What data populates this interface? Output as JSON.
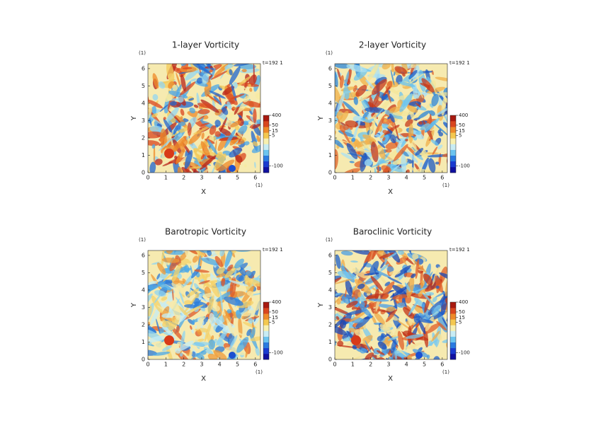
{
  "chart_data": [
    {
      "type": "heatmap",
      "title": "1-layer Vorticity",
      "x_label": "X",
      "y_label": "Y",
      "x_unit": "(1)",
      "y_unit": "(1)",
      "time_label": "t=192 1",
      "xlim": [
        0,
        6.283
      ],
      "ylim": [
        0,
        6.283
      ],
      "xticks": [
        0,
        1,
        2,
        3,
        4,
        5,
        6
      ],
      "yticks": [
        0,
        1,
        2,
        3,
        4,
        5,
        6
      ],
      "colorbar": {
        "scale": "symlog",
        "clim": [
          -400,
          400
        ],
        "ticks": [
          400,
          50,
          15,
          5,
          -100
        ]
      }
    },
    {
      "type": "heatmap",
      "title": "2-layer Vorticity",
      "x_label": "X",
      "y_label": "Y",
      "x_unit": "(1)",
      "y_unit": "(1)",
      "time_label": "t=192 1",
      "xlim": [
        0,
        6.283
      ],
      "ylim": [
        0,
        6.283
      ],
      "xticks": [
        0,
        1,
        2,
        3,
        4,
        5,
        6
      ],
      "yticks": [
        0,
        1,
        2,
        3,
        4,
        5,
        6
      ],
      "colorbar": {
        "scale": "symlog",
        "clim": [
          -400,
          400
        ],
        "ticks": [
          400,
          50,
          15,
          5,
          -100
        ]
      }
    },
    {
      "type": "heatmap",
      "title": "Barotropic Vorticity",
      "x_label": "X",
      "y_label": "Y",
      "x_unit": "(1)",
      "y_unit": "(1)",
      "time_label": "t=192 1",
      "xlim": [
        0,
        6.283
      ],
      "ylim": [
        0,
        6.283
      ],
      "xticks": [
        0,
        1,
        2,
        3,
        4,
        5,
        6
      ],
      "yticks": [
        0,
        1,
        2,
        3,
        4,
        5,
        6
      ],
      "colorbar": {
        "scale": "symlog",
        "clim": [
          -400,
          400
        ],
        "ticks": [
          400,
          50,
          15,
          5,
          -100
        ]
      }
    },
    {
      "type": "heatmap",
      "title": "Baroclinic Vorticity",
      "x_label": "X",
      "y_label": "Y",
      "x_unit": "(1)",
      "y_unit": "(1)",
      "time_label": "t=192 1",
      "xlim": [
        0,
        6.283
      ],
      "ylim": [
        0,
        6.283
      ],
      "xticks": [
        0,
        1,
        2,
        3,
        4,
        5,
        6
      ],
      "yticks": [
        0,
        1,
        2,
        3,
        4,
        5,
        6
      ],
      "colorbar": {
        "scale": "symlog",
        "clim": [
          -400,
          400
        ],
        "ticks": [
          400,
          50,
          15,
          5,
          -100
        ]
      }
    }
  ]
}
